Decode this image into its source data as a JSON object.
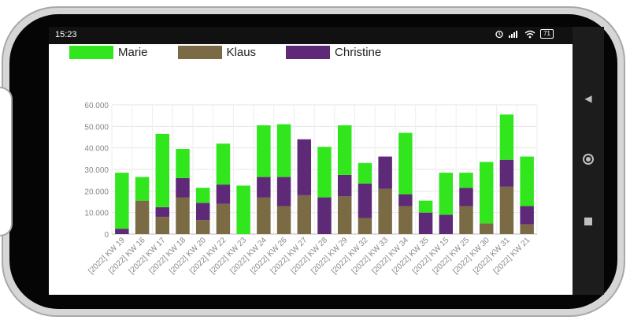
{
  "status_bar": {
    "time": "15:23",
    "battery": "71"
  },
  "icons": {
    "alarm": "alarm-icon",
    "signal": "signal-icon",
    "wifi": "wifi-icon",
    "battery": "battery-icon",
    "back": "back-triangle-icon",
    "home": "home-circle-icon",
    "recents": "recents-square-icon"
  },
  "colors": {
    "Marie": "#32e61e",
    "Klaus": "#7a6b45",
    "Christine": "#5e2a77"
  },
  "chart_data": {
    "type": "bar",
    "stacked": true,
    "categories": [
      "[2022] KW 19",
      "[2022] KW 16",
      "[2022] KW 17",
      "[2022] KW 18",
      "[2022] KW 20",
      "[2022] KW 22",
      "[2022] KW 23",
      "[2022] KW 24",
      "[2022] KW 26",
      "[2022] KW 27",
      "[2022] KW 28",
      "[2022] KW 29",
      "[2022] KW 32",
      "[2022] KW 33",
      "[2022] KW 34",
      "[2022] KW 35",
      "[2022] KW 15",
      "[2022] KW 25",
      "[2022] KW 30",
      "[2022] KW 31",
      "[2022] KW 21"
    ],
    "series": [
      {
        "name": "Klaus",
        "values": [
          0,
          15500,
          8000,
          17000,
          6500,
          14000,
          0,
          17000,
          13000,
          18000,
          0,
          17500,
          7500,
          21000,
          13000,
          0,
          0,
          13000,
          5000,
          22000,
          4500
        ]
      },
      {
        "name": "Christine",
        "values": [
          2500,
          0,
          4500,
          9000,
          8000,
          9000,
          0,
          9500,
          13500,
          26000,
          17000,
          10000,
          16000,
          15000,
          5500,
          10000,
          9000,
          8500,
          0,
          12500,
          8500
        ]
      },
      {
        "name": "Marie",
        "values": [
          26000,
          11000,
          34000,
          13500,
          7000,
          19000,
          22500,
          24000,
          24500,
          0,
          23500,
          23000,
          9500,
          0,
          28500,
          5500,
          19500,
          7000,
          28500,
          21000,
          23000
        ]
      }
    ],
    "ytick_labels": [
      "0",
      "10.000",
      "20.000",
      "30.000",
      "40.000",
      "50.000",
      "60.000"
    ],
    "ylim": [
      0,
      60000
    ],
    "legend": [
      "Marie",
      "Klaus",
      "Christine"
    ],
    "legend_position": "top",
    "grid": true
  }
}
